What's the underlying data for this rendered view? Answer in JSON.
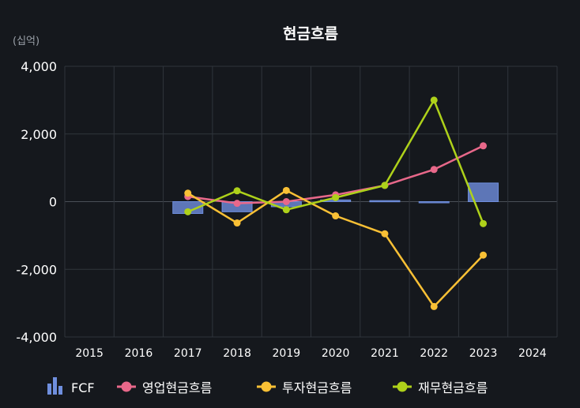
{
  "chart_data": {
    "type": "bar+line",
    "title": "현금흐름",
    "unit_label": "(십억)",
    "categories": [
      "2015",
      "2016",
      "2017",
      "2018",
      "2019",
      "2020",
      "2021",
      "2022",
      "2023",
      "2024"
    ],
    "ylim": [
      -4000,
      4000
    ],
    "yticks": [
      4000,
      2000,
      0,
      -2000,
      -4000
    ],
    "ytick_labels": [
      "4,000",
      "2,000",
      "0",
      "-2,000",
      "-4,000"
    ],
    "grid": true,
    "legend_position": "bottom",
    "bars": {
      "name": "FCF",
      "color": "#6f8fde",
      "values": [
        null,
        null,
        -350,
        -300,
        -150,
        50,
        30,
        -30,
        550,
        null
      ]
    },
    "series": [
      {
        "name": "영업현금흐름",
        "color": "#e8688a",
        "values": [
          null,
          null,
          150,
          -50,
          0,
          200,
          480,
          950,
          1650,
          null
        ]
      },
      {
        "name": "투자현금흐름",
        "color": "#f9c035",
        "values": [
          null,
          null,
          250,
          -630,
          330,
          -420,
          -950,
          -3100,
          -1580,
          null
        ]
      },
      {
        "name": "재무현금흐름",
        "color": "#aed11a",
        "values": [
          null,
          null,
          -300,
          320,
          -240,
          120,
          480,
          3000,
          -650,
          null
        ]
      }
    ]
  }
}
